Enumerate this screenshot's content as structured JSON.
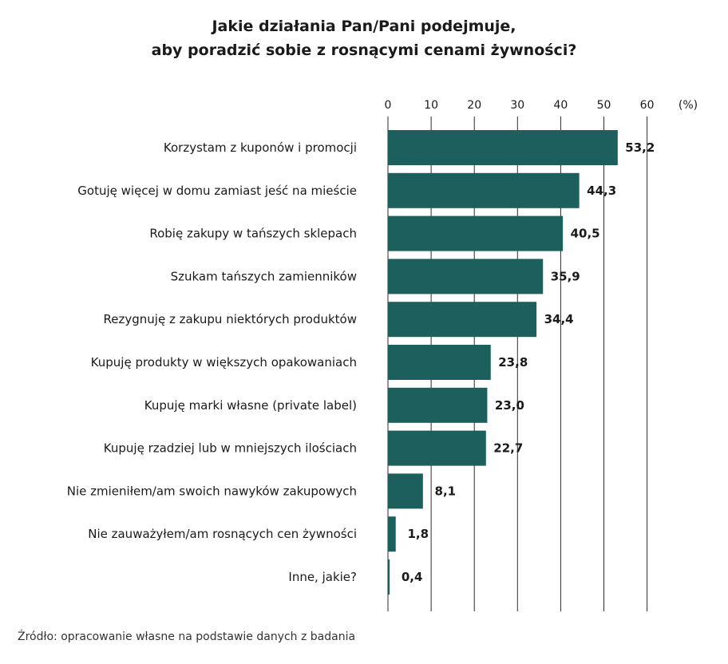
{
  "title_lines": [
    "Jakie działania Pan/Pani podejmuje,",
    "aby poradzić sobie z rosnącymi cenami żywności?"
  ],
  "source": "Źródło: opracowanie własne na podstawie danych z badania",
  "colors": {
    "bar": "#1d5f5d",
    "grid": "#2b2b2b",
    "text": "#1a1a1a"
  },
  "chart_data": {
    "type": "bar",
    "orientation": "horizontal",
    "categories": [
      "Korzystam z kuponów i promocji",
      "Gotuję więcej w domu zamiast jeść na mieście",
      "Robię zakupy w tańszych sklepach",
      "Szukam tańszych zamienników",
      "Rezygnuję z zakupu niektórych produktów",
      "Kupuję produkty w większych opakowaniach",
      "Kupuję marki własne (private label)",
      "Kupuję rzadziej lub w mniejszych ilościach",
      "Nie zmieniłem/am swoich nawyków zakupowych",
      "Nie zauważyłem/am rosnących cen żywności",
      "Inne, jakie?"
    ],
    "values": [
      53.2,
      44.3,
      40.5,
      35.9,
      34.4,
      23.8,
      23.0,
      22.7,
      8.1,
      1.8,
      0.4
    ],
    "value_labels": [
      "53,2",
      "44,3",
      "40,5",
      "35,9",
      "34,4",
      "23,8",
      "23,0",
      "22,7",
      "8,1",
      "1,8",
      "0,4"
    ],
    "x_ticks": [
      0,
      10,
      20,
      30,
      40,
      50,
      60
    ],
    "x_unit_label": "(%)",
    "xlim": [
      0,
      60
    ],
    "grid": true,
    "axis_position": "top"
  }
}
